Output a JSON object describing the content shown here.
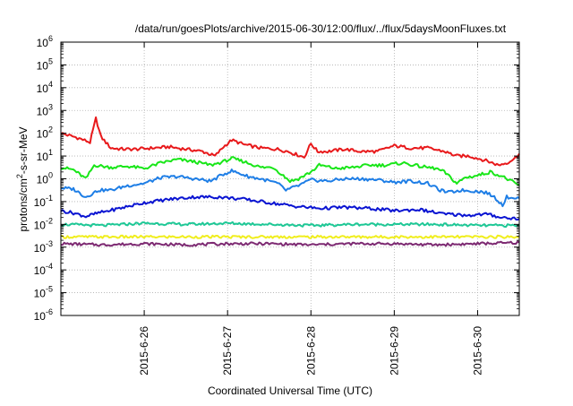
{
  "chart_data": {
    "type": "line",
    "title": "/data/run/goesPlots/archive/2015-06-30/12:00/flux/../flux/5daysMoonFluxes.txt",
    "xlabel": "Coordinated Universal Time (UTC)",
    "ylabel_parts": [
      "protons/cm",
      "2",
      "-s-sr-MeV"
    ],
    "y_scale": "log",
    "ylim_exp": [
      -6,
      6
    ],
    "y_ticks": [
      {
        "base": "10",
        "exp": "6",
        "v": 6
      },
      {
        "base": "10",
        "exp": "5",
        "v": 5
      },
      {
        "base": "10",
        "exp": "4",
        "v": 4
      },
      {
        "base": "10",
        "exp": "3",
        "v": 3
      },
      {
        "base": "10",
        "exp": "2",
        "v": 2
      },
      {
        "base": "10",
        "exp": "1",
        "v": 1
      },
      {
        "base": "10",
        "exp": "0",
        "v": 0
      },
      {
        "base": "10",
        "exp": "-1",
        "v": -1
      },
      {
        "base": "10",
        "exp": "-2",
        "v": -2
      },
      {
        "base": "10",
        "exp": "-3",
        "v": -3
      },
      {
        "base": "10",
        "exp": "-4",
        "v": -4
      },
      {
        "base": "10",
        "exp": "-5",
        "v": -5
      },
      {
        "base": "10",
        "exp": "-6",
        "v": -6
      }
    ],
    "x_ticks": [
      {
        "label": "2015-6-26",
        "t": 1.0
      },
      {
        "label": "2015-6-27",
        "t": 2.0
      },
      {
        "label": "2015-6-28",
        "t": 3.0
      },
      {
        "label": "2015-6-29",
        "t": 4.0
      },
      {
        "label": "2015-6-30",
        "t": 5.0
      }
    ],
    "x_range": [
      0.0,
      5.5
    ],
    "grid": true,
    "series": [
      {
        "color": "#e8191b",
        "points": [
          [
            0.0,
            2.0
          ],
          [
            0.2,
            1.8
          ],
          [
            0.35,
            1.6
          ],
          [
            0.42,
            2.65
          ],
          [
            0.48,
            1.85
          ],
          [
            0.6,
            1.35
          ],
          [
            0.75,
            1.3
          ],
          [
            0.9,
            1.3
          ],
          [
            1.1,
            1.35
          ],
          [
            1.3,
            1.4
          ],
          [
            1.5,
            1.3
          ],
          [
            1.7,
            1.2
          ],
          [
            1.85,
            1.0
          ],
          [
            1.95,
            1.4
          ],
          [
            2.05,
            1.7
          ],
          [
            2.2,
            1.5
          ],
          [
            2.4,
            1.35
          ],
          [
            2.6,
            1.3
          ],
          [
            2.72,
            1.2
          ],
          [
            2.8,
            1.1
          ],
          [
            2.88,
            1.0
          ],
          [
            2.92,
            0.95
          ],
          [
            3.0,
            1.55
          ],
          [
            3.08,
            1.2
          ],
          [
            3.2,
            1.2
          ],
          [
            3.4,
            1.3
          ],
          [
            3.6,
            1.2
          ],
          [
            3.8,
            1.2
          ],
          [
            4.0,
            1.45
          ],
          [
            4.2,
            1.35
          ],
          [
            4.4,
            1.35
          ],
          [
            4.6,
            1.2
          ],
          [
            4.75,
            1.0
          ],
          [
            4.9,
            1.0
          ],
          [
            5.1,
            0.8
          ],
          [
            5.25,
            0.6
          ],
          [
            5.35,
            0.7
          ],
          [
            5.45,
            0.9
          ],
          [
            5.5,
            1.1
          ]
        ]
      },
      {
        "color": "#19e619",
        "points": [
          [
            0.0,
            0.5
          ],
          [
            0.15,
            0.4
          ],
          [
            0.3,
            0.0
          ],
          [
            0.4,
            0.6
          ],
          [
            0.6,
            0.5
          ],
          [
            0.8,
            0.55
          ],
          [
            1.0,
            0.45
          ],
          [
            1.2,
            0.7
          ],
          [
            1.4,
            0.85
          ],
          [
            1.6,
            0.75
          ],
          [
            1.8,
            0.6
          ],
          [
            1.95,
            0.75
          ],
          [
            2.05,
            0.9
          ],
          [
            2.2,
            0.75
          ],
          [
            2.4,
            0.5
          ],
          [
            2.55,
            0.5
          ],
          [
            2.65,
            0.2
          ],
          [
            2.75,
            -0.1
          ],
          [
            2.85,
            0.0
          ],
          [
            3.0,
            0.3
          ],
          [
            3.1,
            0.6
          ],
          [
            3.3,
            0.45
          ],
          [
            3.5,
            0.5
          ],
          [
            3.7,
            0.6
          ],
          [
            3.9,
            0.6
          ],
          [
            4.1,
            0.7
          ],
          [
            4.3,
            0.55
          ],
          [
            4.5,
            0.45
          ],
          [
            4.6,
            0.3
          ],
          [
            4.75,
            -0.2
          ],
          [
            4.85,
            0.05
          ],
          [
            5.0,
            0.15
          ],
          [
            5.15,
            0.3
          ],
          [
            5.3,
            0.1
          ],
          [
            5.5,
            -0.3
          ]
        ]
      },
      {
        "color": "#1e7ee6",
        "points": [
          [
            0.0,
            -0.4
          ],
          [
            0.15,
            -0.45
          ],
          [
            0.3,
            -0.8
          ],
          [
            0.45,
            -0.5
          ],
          [
            0.6,
            -0.5
          ],
          [
            0.8,
            -0.3
          ],
          [
            1.0,
            -0.2
          ],
          [
            1.2,
            0.05
          ],
          [
            1.4,
            0.1
          ],
          [
            1.6,
            0.0
          ],
          [
            1.8,
            -0.1
          ],
          [
            1.95,
            0.2
          ],
          [
            2.05,
            0.35
          ],
          [
            2.25,
            0.1
          ],
          [
            2.45,
            -0.05
          ],
          [
            2.6,
            -0.2
          ],
          [
            2.7,
            -0.5
          ],
          [
            2.85,
            -0.3
          ],
          [
            3.0,
            -0.05
          ],
          [
            3.2,
            -0.1
          ],
          [
            3.4,
            0.0
          ],
          [
            3.6,
            0.0
          ],
          [
            3.8,
            -0.05
          ],
          [
            4.0,
            -0.15
          ],
          [
            4.2,
            -0.1
          ],
          [
            4.4,
            -0.2
          ],
          [
            4.55,
            -0.5
          ],
          [
            4.65,
            -0.6
          ],
          [
            4.8,
            -0.5
          ],
          [
            5.0,
            -0.55
          ],
          [
            5.1,
            -0.6
          ],
          [
            5.2,
            -0.8
          ],
          [
            5.3,
            -1.15
          ],
          [
            5.35,
            -0.8
          ],
          [
            5.5,
            -0.85
          ]
        ]
      },
      {
        "color": "#0a14d2",
        "points": [
          [
            0.0,
            -1.4
          ],
          [
            0.15,
            -1.5
          ],
          [
            0.3,
            -1.65
          ],
          [
            0.45,
            -1.5
          ],
          [
            0.7,
            -1.3
          ],
          [
            1.0,
            -1.05
          ],
          [
            1.3,
            -0.9
          ],
          [
            1.6,
            -0.8
          ],
          [
            1.9,
            -0.8
          ],
          [
            2.2,
            -0.9
          ],
          [
            2.5,
            -1.05
          ],
          [
            2.8,
            -1.2
          ],
          [
            3.1,
            -1.3
          ],
          [
            3.4,
            -1.25
          ],
          [
            3.7,
            -1.3
          ],
          [
            4.0,
            -1.4
          ],
          [
            4.3,
            -1.35
          ],
          [
            4.6,
            -1.55
          ],
          [
            4.9,
            -1.6
          ],
          [
            5.1,
            -1.55
          ],
          [
            5.3,
            -1.7
          ],
          [
            5.5,
            -1.75
          ]
        ]
      },
      {
        "color": "#1ec896",
        "points": [
          [
            0.0,
            -2.0
          ],
          [
            0.5,
            -2.05
          ],
          [
            1.0,
            -1.95
          ],
          [
            1.5,
            -2.0
          ],
          [
            2.0,
            -1.95
          ],
          [
            2.5,
            -2.0
          ],
          [
            3.0,
            -2.05
          ],
          [
            3.5,
            -2.0
          ],
          [
            4.0,
            -2.0
          ],
          [
            4.5,
            -2.0
          ],
          [
            5.0,
            -2.05
          ],
          [
            5.5,
            -2.05
          ]
        ]
      },
      {
        "color": "#f0ee1e",
        "points": [
          [
            0.0,
            -2.55
          ],
          [
            1.0,
            -2.55
          ],
          [
            2.0,
            -2.55
          ],
          [
            3.0,
            -2.55
          ],
          [
            4.0,
            -2.55
          ],
          [
            5.0,
            -2.55
          ],
          [
            5.5,
            -2.55
          ]
        ]
      },
      {
        "color": "#7d2a72",
        "points": [
          [
            0.0,
            -2.85
          ],
          [
            0.5,
            -2.9
          ],
          [
            1.0,
            -2.85
          ],
          [
            1.5,
            -2.9
          ],
          [
            2.0,
            -2.85
          ],
          [
            2.5,
            -2.85
          ],
          [
            3.0,
            -2.9
          ],
          [
            3.5,
            -2.85
          ],
          [
            4.0,
            -2.85
          ],
          [
            4.5,
            -2.9
          ],
          [
            5.0,
            -2.85
          ],
          [
            5.5,
            -2.8
          ]
        ]
      }
    ]
  }
}
